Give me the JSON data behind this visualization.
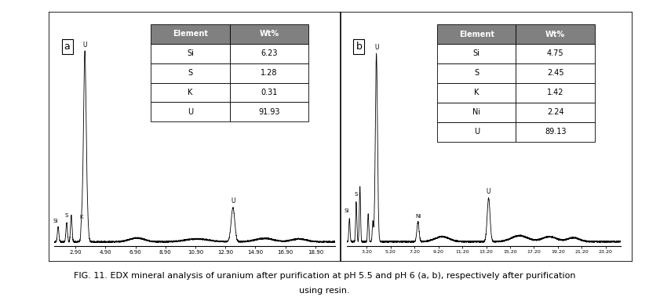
{
  "title_line1": "FIG. 11. EDX mineral analysis of uranium after purification at pH 5.5 and pH 6 (a, b), respectively after purification",
  "title_line2": "using resin.",
  "panel_a_label": "a",
  "panel_b_label": "b",
  "table_a": {
    "header": [
      "Element",
      "Wt%"
    ],
    "rows": [
      [
        "Si",
        "6.23"
      ],
      [
        "S",
        "1.28"
      ],
      [
        "K",
        "0.31"
      ],
      [
        "U",
        "91.93"
      ]
    ]
  },
  "table_b": {
    "header": [
      "Element",
      "Wt%"
    ],
    "rows": [
      [
        "Si",
        "4.75"
      ],
      [
        "S",
        "2.45"
      ],
      [
        "K",
        "1.42"
      ],
      [
        "Ni",
        "2.24"
      ],
      [
        "U",
        "89.13"
      ]
    ]
  },
  "panel_a_xticks": [
    2.9,
    4.9,
    6.9,
    8.9,
    10.9,
    12.9,
    14.9,
    16.9,
    18.9
  ],
  "panel_b_xticks": [
    3.2,
    5.2,
    7.2,
    9.2,
    11.2,
    13.2,
    15.2,
    17.2,
    19.2,
    21.2,
    23.2
  ],
  "header_color": "#808080",
  "line_color": "#000000",
  "background_color": "#ffffff"
}
